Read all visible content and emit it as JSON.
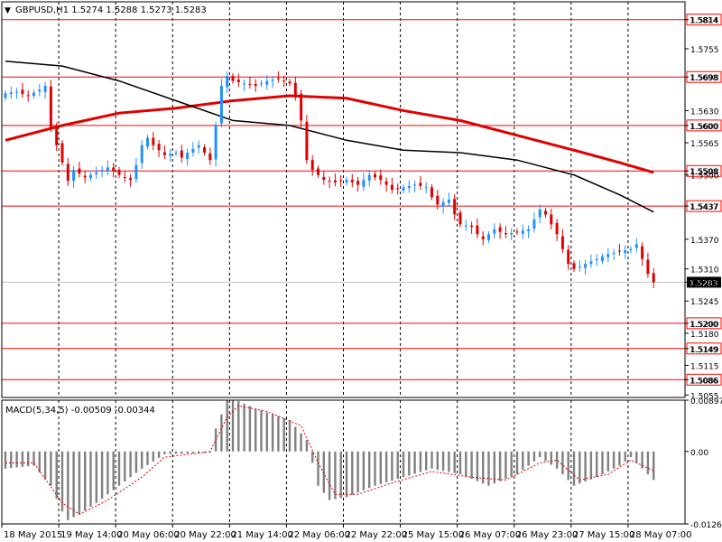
{
  "main_chart": {
    "symbol_info": "GBPUSD,H1  1.5274 1.5288 1.5273 1.5283",
    "collapse_glyph": "▼"
  },
  "macd_panel": {
    "title": "MACD(5,34,5) -0.00509 -0.00344"
  },
  "colors": {
    "bull": "#1e90ff",
    "bear": "#e00000",
    "level_line": "#ff0000",
    "ma_slow": "#e00000",
    "ma_fast": "#000000",
    "macd_hist": "#808080",
    "macd_signal": "#e00000",
    "grid": "#000000",
    "current_label_bg": "#000000"
  },
  "chart_data": [
    {
      "type": "candlestick",
      "title": "GBPUSD,H1  1.5274 1.5288 1.5273 1.5283",
      "ylim": [
        1.505,
        1.585
      ],
      "price_ticks": [
        "1.5814",
        "1.5755",
        "1.5698",
        "1.5630",
        "1.5600",
        "1.5565",
        "1.5508",
        "1.5500",
        "1.5437",
        "1.5370",
        "1.5310",
        "1.5283",
        "1.5245",
        "1.5200",
        "1.5180",
        "1.5149",
        "1.5115",
        "1.5086",
        "1.5055"
      ],
      "horizontal_levels": [
        {
          "price": 1.5814,
          "label": "1.5814"
        },
        {
          "price": 1.5698,
          "label": "1.5698"
        },
        {
          "price": 1.56,
          "label": "1.5600"
        },
        {
          "price": 1.5508,
          "label": "1.5508"
        },
        {
          "price": 1.5437,
          "label": "1.5437"
        },
        {
          "price": 1.52,
          "label": "1.5200"
        },
        {
          "price": 1.5149,
          "label": "1.5149"
        },
        {
          "price": 1.5086,
          "label": "1.5086"
        }
      ],
      "current_price": {
        "price": 1.5283,
        "label": "1.5283"
      },
      "time_labels": [
        "18 May 2015",
        "19 May 14:00",
        "20 May 06:00",
        "20 May 22:00",
        "21 May 14:00",
        "22 May 06:00",
        "22 May 22:00",
        "25 May 15:00",
        "26 May 07:00",
        "26 May 23:00",
        "27 May 15:00",
        "28 May 07:00"
      ],
      "close_path": [
        [
          0,
          1.5665
        ],
        [
          2,
          1.5668
        ],
        [
          4,
          1.566
        ],
        [
          6,
          1.5672
        ],
        [
          7,
          1.568
        ],
        [
          8,
          1.5595
        ],
        [
          9,
          1.556
        ],
        [
          10,
          1.5525
        ],
        [
          11,
          1.5488
        ],
        [
          12,
          1.551
        ],
        [
          14,
          1.5495
        ],
        [
          16,
          1.5505
        ],
        [
          18,
          1.5515
        ],
        [
          20,
          1.55
        ],
        [
          22,
          1.549
        ],
        [
          23,
          1.552
        ],
        [
          24,
          1.556
        ],
        [
          25,
          1.5575
        ],
        [
          26,
          1.556
        ],
        [
          28,
          1.554
        ],
        [
          30,
          1.5545
        ],
        [
          31,
          1.5535
        ],
        [
          32,
          1.5545
        ],
        [
          34,
          1.556
        ],
        [
          35,
          1.5545
        ],
        [
          36,
          1.553
        ],
        [
          37,
          1.56
        ],
        [
          38,
          1.568
        ],
        [
          39,
          1.57
        ],
        [
          40,
          1.569
        ],
        [
          42,
          1.5685
        ],
        [
          44,
          1.568
        ],
        [
          46,
          1.569
        ],
        [
          48,
          1.5695
        ],
        [
          50,
          1.5685
        ],
        [
          51,
          1.566
        ],
        [
          52,
          1.561
        ],
        [
          53,
          1.553
        ],
        [
          54,
          1.551
        ],
        [
          56,
          1.549
        ],
        [
          58,
          1.5485
        ],
        [
          60,
          1.549
        ],
        [
          62,
          1.548
        ],
        [
          64,
          1.55
        ],
        [
          66,
          1.549
        ],
        [
          68,
          1.547
        ],
        [
          70,
          1.5475
        ],
        [
          72,
          1.548
        ],
        [
          74,
          1.5475
        ],
        [
          75,
          1.5455
        ],
        [
          76,
          1.544
        ],
        [
          78,
          1.545
        ],
        [
          79,
          1.542
        ],
        [
          80,
          1.54
        ],
        [
          82,
          1.5395
        ],
        [
          83,
          1.538
        ],
        [
          84,
          1.537
        ],
        [
          86,
          1.539
        ],
        [
          88,
          1.538
        ],
        [
          90,
          1.5385
        ],
        [
          92,
          1.539
        ],
        [
          93,
          1.541
        ],
        [
          94,
          1.543
        ],
        [
          95,
          1.542
        ],
        [
          96,
          1.54
        ],
        [
          97,
          1.538
        ],
        [
          98,
          1.535
        ],
        [
          99,
          1.532
        ],
        [
          100,
          1.531
        ],
        [
          102,
          1.532
        ],
        [
          104,
          1.533
        ],
        [
          106,
          1.534
        ],
        [
          108,
          1.5345
        ],
        [
          110,
          1.535
        ],
        [
          111,
          1.536
        ],
        [
          112,
          1.533
        ],
        [
          113,
          1.53
        ],
        [
          114,
          1.5283
        ]
      ],
      "ma_slow": [
        [
          0,
          1.557
        ],
        [
          10,
          1.56
        ],
        [
          20,
          1.5625
        ],
        [
          30,
          1.5635
        ],
        [
          40,
          1.565
        ],
        [
          50,
          1.566
        ],
        [
          60,
          1.5655
        ],
        [
          70,
          1.563
        ],
        [
          80,
          1.561
        ],
        [
          90,
          1.558
        ],
        [
          100,
          1.555
        ],
        [
          108,
          1.5525
        ],
        [
          114,
          1.5505
        ]
      ],
      "ma_fast": [
        [
          0,
          1.573
        ],
        [
          10,
          1.572
        ],
        [
          20,
          1.569
        ],
        [
          30,
          1.565
        ],
        [
          40,
          1.561
        ],
        [
          50,
          1.56
        ],
        [
          60,
          1.557
        ],
        [
          70,
          1.555
        ],
        [
          80,
          1.5545
        ],
        [
          90,
          1.553
        ],
        [
          100,
          1.55
        ],
        [
          108,
          1.546
        ],
        [
          114,
          1.5425
        ]
      ]
    },
    {
      "type": "bar",
      "title": "MACD(5,34,5) -0.00509 -0.00344",
      "ylim": [
        -0.01268,
        0.00897
      ],
      "ticks": [
        "0.00897",
        "0.00",
        "-0.01268"
      ],
      "histogram_path": [
        [
          0,
          -0.003
        ],
        [
          5,
          -0.0025
        ],
        [
          8,
          -0.006
        ],
        [
          10,
          -0.0105
        ],
        [
          11,
          -0.012
        ],
        [
          13,
          -0.011
        ],
        [
          16,
          -0.009
        ],
        [
          20,
          -0.006
        ],
        [
          24,
          -0.003
        ],
        [
          28,
          -0.0005
        ],
        [
          34,
          -0.0003
        ],
        [
          36,
          -0.0002
        ],
        [
          37,
          0.004
        ],
        [
          39,
          0.009
        ],
        [
          41,
          0.0088
        ],
        [
          44,
          0.0075
        ],
        [
          50,
          0.0055
        ],
        [
          53,
          0.002
        ],
        [
          55,
          -0.006
        ],
        [
          57,
          -0.0085
        ],
        [
          60,
          -0.008
        ],
        [
          65,
          -0.006
        ],
        [
          70,
          -0.0045
        ],
        [
          75,
          -0.003
        ],
        [
          80,
          -0.004
        ],
        [
          85,
          -0.006
        ],
        [
          90,
          -0.004
        ],
        [
          94,
          -0.001
        ],
        [
          97,
          -0.003
        ],
        [
          100,
          -0.006
        ],
        [
          104,
          -0.0045
        ],
        [
          108,
          -0.0025
        ],
        [
          110,
          -0.001
        ],
        [
          112,
          -0.003
        ],
        [
          114,
          -0.005
        ]
      ],
      "signal_path": [
        [
          0,
          -0.002
        ],
        [
          5,
          -0.002
        ],
        [
          10,
          -0.009
        ],
        [
          13,
          -0.011
        ],
        [
          18,
          -0.0085
        ],
        [
          24,
          -0.0045
        ],
        [
          28,
          -0.001
        ],
        [
          34,
          -0.0003
        ],
        [
          36,
          0.0
        ],
        [
          39,
          0.006
        ],
        [
          41,
          0.008
        ],
        [
          46,
          0.007
        ],
        [
          52,
          0.0045
        ],
        [
          55,
          -0.002
        ],
        [
          58,
          -0.0075
        ],
        [
          62,
          -0.0075
        ],
        [
          68,
          -0.0055
        ],
        [
          75,
          -0.0035
        ],
        [
          82,
          -0.0045
        ],
        [
          88,
          -0.005
        ],
        [
          94,
          -0.002
        ],
        [
          97,
          -0.0015
        ],
        [
          101,
          -0.005
        ],
        [
          106,
          -0.004
        ],
        [
          110,
          -0.0015
        ],
        [
          114,
          -0.0034
        ]
      ]
    }
  ]
}
